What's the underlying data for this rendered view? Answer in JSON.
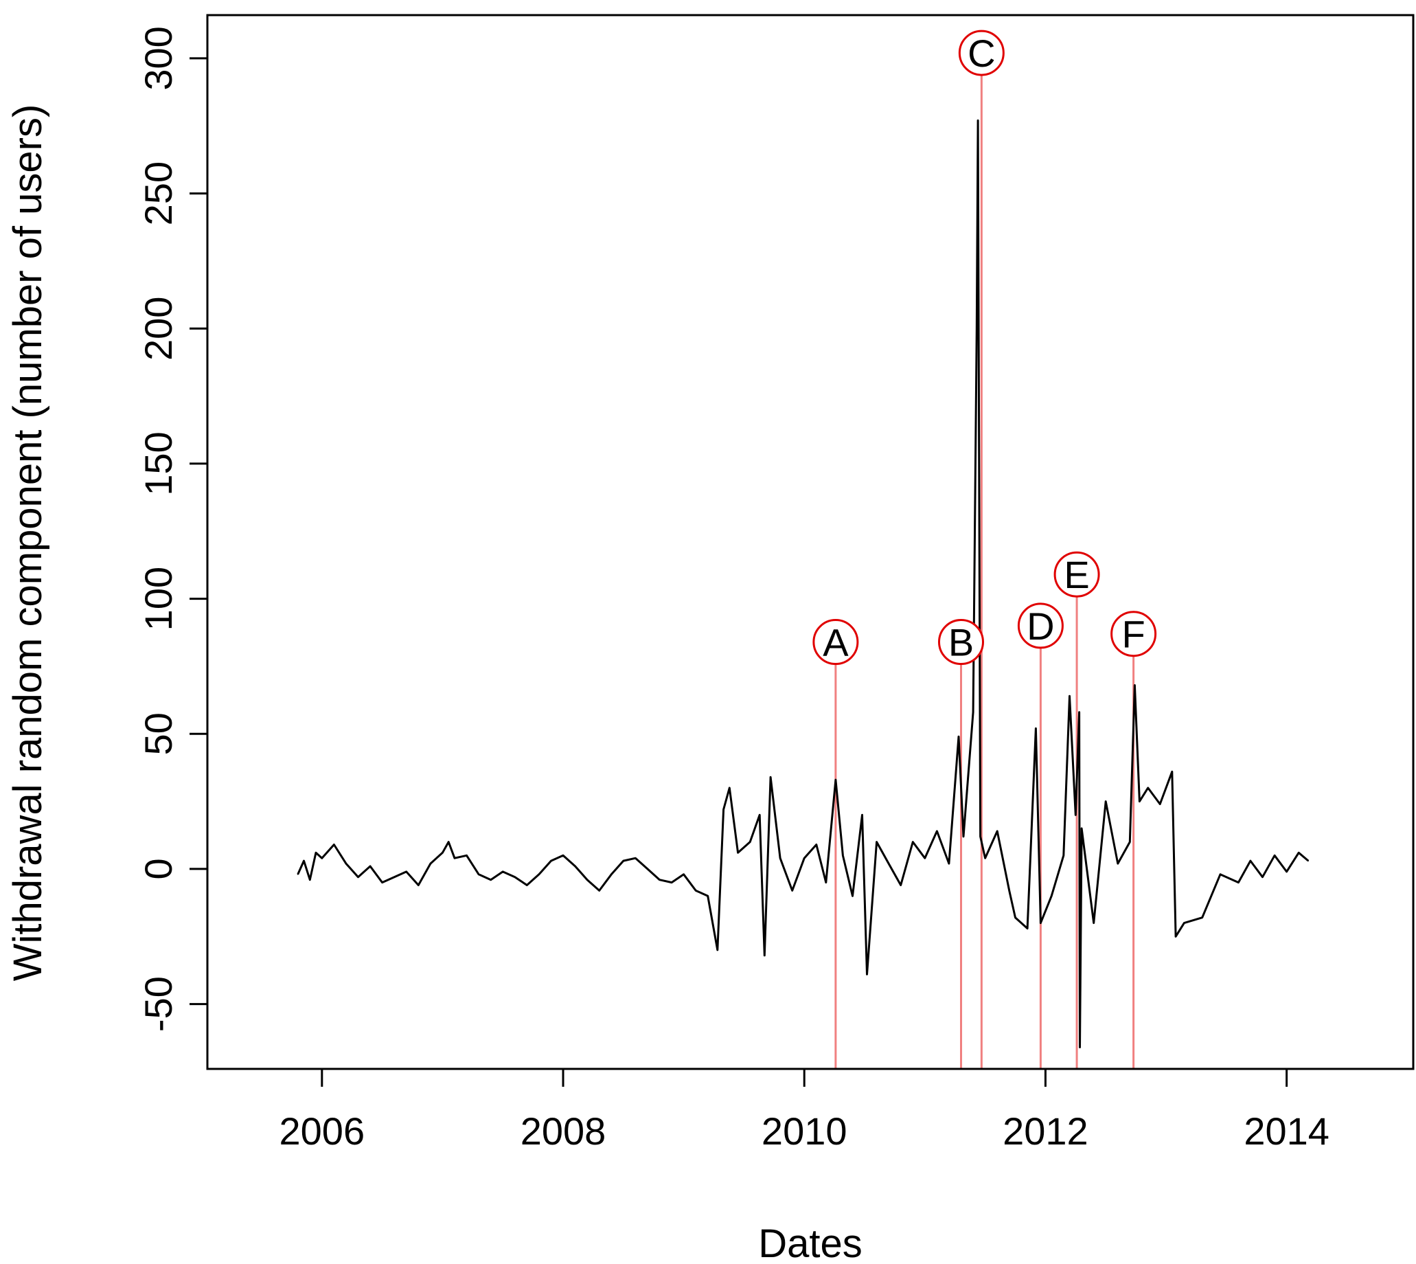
{
  "chart_data": {
    "type": "line",
    "title": "",
    "xlabel": "Dates",
    "ylabel": "Withdrawal random component (number of users)",
    "xlim": [
      2005.05,
      2015.05
    ],
    "ylim": [
      -74,
      316
    ],
    "xticks": [
      2006,
      2008,
      2010,
      2012,
      2014
    ],
    "xtick_labels": [
      "2006",
      "2008",
      "2010",
      "2012",
      "2014"
    ],
    "yticks": [
      -50,
      0,
      50,
      100,
      150,
      200,
      250,
      300
    ],
    "ytick_labels": [
      "-50",
      "0",
      "50",
      "100",
      "150",
      "200",
      "250",
      "300"
    ],
    "grid": false,
    "line_color": "#000000",
    "event_color": "#f08080",
    "event_circle_color": "#e00000",
    "series": [
      {
        "points": [
          [
            2005.8,
            -2
          ],
          [
            2005.85,
            3
          ],
          [
            2005.9,
            -4
          ],
          [
            2005.95,
            6
          ],
          [
            2006.0,
            4
          ],
          [
            2006.1,
            9
          ],
          [
            2006.2,
            2
          ],
          [
            2006.3,
            -3
          ],
          [
            2006.4,
            1
          ],
          [
            2006.5,
            -5
          ],
          [
            2006.6,
            -3
          ],
          [
            2006.7,
            -1
          ],
          [
            2006.8,
            -6
          ],
          [
            2006.9,
            2
          ],
          [
            2007.0,
            6
          ],
          [
            2007.05,
            10
          ],
          [
            2007.1,
            4
          ],
          [
            2007.2,
            5
          ],
          [
            2007.3,
            -2
          ],
          [
            2007.4,
            -4
          ],
          [
            2007.5,
            -1
          ],
          [
            2007.6,
            -3
          ],
          [
            2007.7,
            -6
          ],
          [
            2007.8,
            -2
          ],
          [
            2007.9,
            3
          ],
          [
            2008.0,
            5
          ],
          [
            2008.1,
            1
          ],
          [
            2008.2,
            -4
          ],
          [
            2008.3,
            -8
          ],
          [
            2008.4,
            -2
          ],
          [
            2008.5,
            3
          ],
          [
            2008.6,
            4
          ],
          [
            2008.7,
            0
          ],
          [
            2008.8,
            -4
          ],
          [
            2008.9,
            -5
          ],
          [
            2009.0,
            -2
          ],
          [
            2009.1,
            -8
          ],
          [
            2009.2,
            -10
          ],
          [
            2009.28,
            -30
          ],
          [
            2009.33,
            22
          ],
          [
            2009.38,
            30
          ],
          [
            2009.45,
            6
          ],
          [
            2009.55,
            10
          ],
          [
            2009.63,
            20
          ],
          [
            2009.67,
            -32
          ],
          [
            2009.72,
            34
          ],
          [
            2009.8,
            4
          ],
          [
            2009.9,
            -8
          ],
          [
            2010.0,
            4
          ],
          [
            2010.1,
            9
          ],
          [
            2010.18,
            -5
          ],
          [
            2010.26,
            33
          ],
          [
            2010.32,
            5
          ],
          [
            2010.4,
            -10
          ],
          [
            2010.48,
            20
          ],
          [
            2010.52,
            -39
          ],
          [
            2010.6,
            10
          ],
          [
            2010.7,
            2
          ],
          [
            2010.8,
            -6
          ],
          [
            2010.9,
            10
          ],
          [
            2011.0,
            4
          ],
          [
            2011.1,
            14
          ],
          [
            2011.2,
            2
          ],
          [
            2011.28,
            49
          ],
          [
            2011.32,
            12
          ],
          [
            2011.4,
            58
          ],
          [
            2011.43,
            200
          ],
          [
            2011.44,
            277
          ],
          [
            2011.46,
            12
          ],
          [
            2011.5,
            4
          ],
          [
            2011.6,
            14
          ],
          [
            2011.7,
            -8
          ],
          [
            2011.75,
            -18
          ],
          [
            2011.85,
            -22
          ],
          [
            2011.92,
            52
          ],
          [
            2011.96,
            -20
          ],
          [
            2012.05,
            -10
          ],
          [
            2012.15,
            5
          ],
          [
            2012.2,
            64
          ],
          [
            2012.25,
            20
          ],
          [
            2012.28,
            58
          ],
          [
            2012.285,
            -66
          ],
          [
            2012.3,
            15
          ],
          [
            2012.4,
            -20
          ],
          [
            2012.5,
            25
          ],
          [
            2012.6,
            2
          ],
          [
            2012.7,
            10
          ],
          [
            2012.74,
            68
          ],
          [
            2012.78,
            25
          ],
          [
            2012.85,
            30
          ],
          [
            2012.95,
            24
          ],
          [
            2013.05,
            36
          ],
          [
            2013.08,
            -25
          ],
          [
            2013.15,
            -20
          ],
          [
            2013.3,
            -18
          ],
          [
            2013.45,
            -2
          ],
          [
            2013.6,
            -5
          ],
          [
            2013.7,
            3
          ],
          [
            2013.8,
            -3
          ],
          [
            2013.9,
            5
          ],
          [
            2014.0,
            -1
          ],
          [
            2014.1,
            6
          ],
          [
            2014.18,
            3
          ]
        ]
      }
    ],
    "events": [
      {
        "label": "A",
        "x": 2010.26,
        "label_y": 84
      },
      {
        "label": "B",
        "x": 2011.3,
        "label_y": 84
      },
      {
        "label": "C",
        "x": 2011.47,
        "label_y": 302
      },
      {
        "label": "D",
        "x": 2011.96,
        "label_y": 90
      },
      {
        "label": "E",
        "x": 2012.26,
        "label_y": 109
      },
      {
        "label": "F",
        "x": 2012.73,
        "label_y": 87
      }
    ]
  }
}
